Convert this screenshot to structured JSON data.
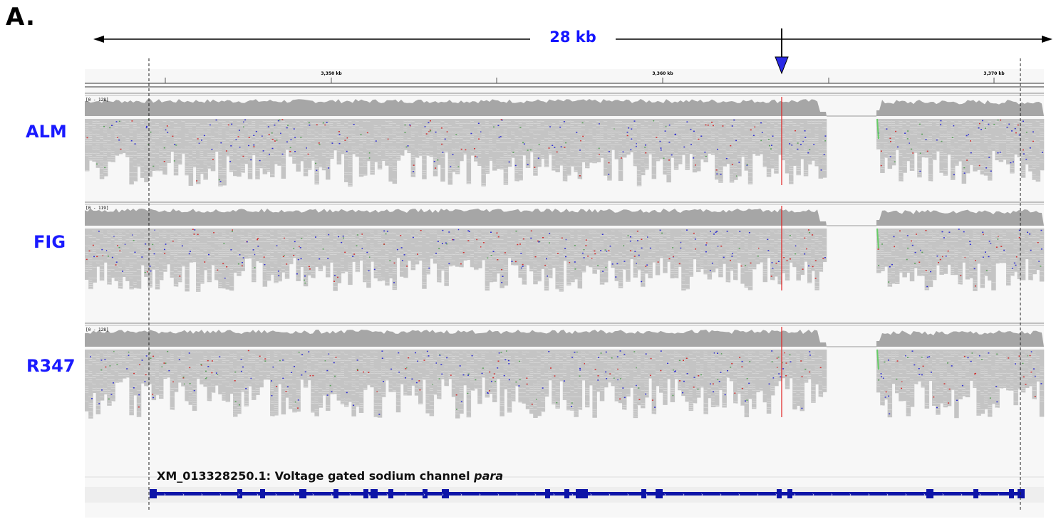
{
  "figure": {
    "panel_letter": "A.",
    "span_label": "28 kb"
  },
  "ruler": {
    "ticks": [
      "3,350 kb",
      "3,360 kb",
      "3,370 kb"
    ]
  },
  "tracks": [
    {
      "sample": "ALM",
      "range": "[0 - 128]"
    },
    {
      "sample": "FIG",
      "range": "[0 - 119]"
    },
    {
      "sample": "R347",
      "range": "[0 - 128]"
    }
  ],
  "gene": {
    "accession": "XM_013328250.1: Voltage gated sodium channel",
    "name": "para"
  },
  "colors": {
    "label_blue": "#1a1aff",
    "coverage_gray": "#a6a6a6",
    "read_gray": "#c4c4c4",
    "variant_red": "#e02020",
    "gene_blue": "#0d14a8",
    "arrow_blue": "#2a2ae6"
  },
  "icons": [
    "down-arrow-icon",
    "double-arrow-icon"
  ]
}
